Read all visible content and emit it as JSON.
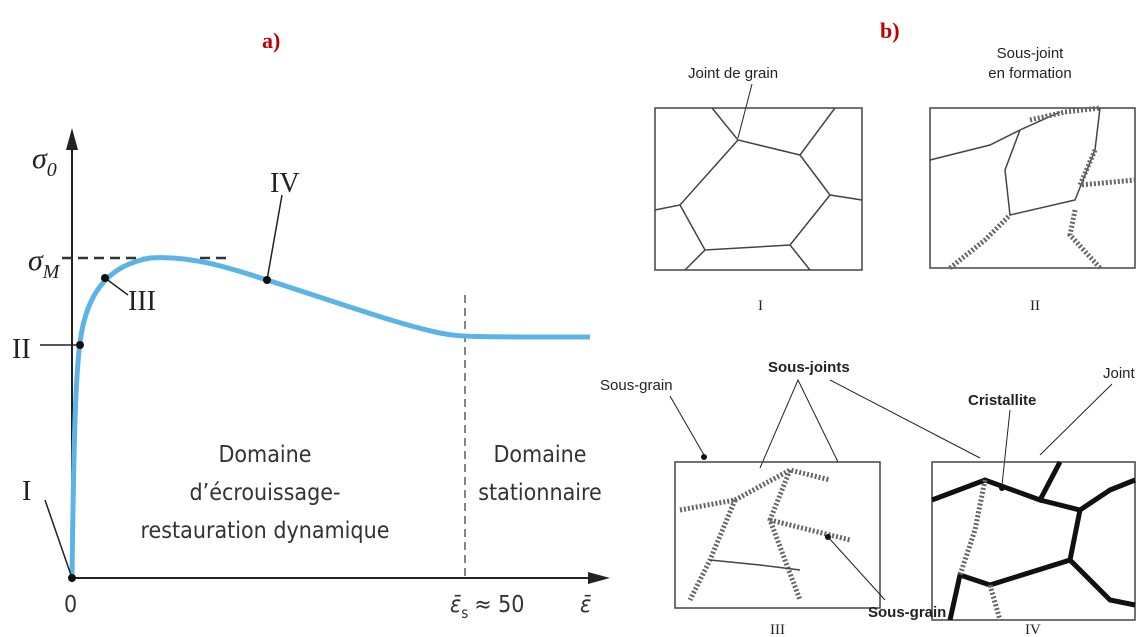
{
  "panel_a": {
    "label": "a)",
    "y_axis": {
      "symbol": "σ",
      "subscript": "0"
    },
    "sigma_max": {
      "symbol": "σ",
      "subscript": "M"
    },
    "stages": [
      "I",
      "II",
      "III",
      "IV"
    ],
    "origin": "0",
    "domain_1": [
      "Domaine",
      "d’écrouissage-",
      "restauration dynamique"
    ],
    "domain_2": [
      "Domaine",
      "stationnaire"
    ],
    "strain_s": {
      "symbol": "ε̄",
      "subscript": "s",
      "rest": "≈ 50"
    },
    "x_axis": "ε̄"
  },
  "panel_b": {
    "label": "b)",
    "joint_de_grain": "Joint de grain",
    "sous_joint": [
      "Sous-joint",
      "en formation"
    ],
    "captions": [
      "I",
      "II",
      "III",
      "IV"
    ],
    "sous_grain_1": "Sous-grain",
    "sous_joints": "Sous-joints",
    "cristallite": "Cristallite",
    "joint": "Joint",
    "sous_grain_2": "Sous-grain"
  }
}
